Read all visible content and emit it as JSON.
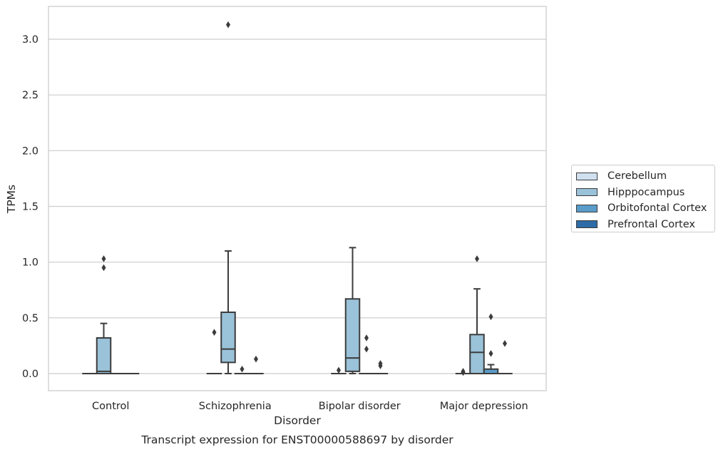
{
  "chart_data": {
    "type": "box",
    "title": "Transcript expression for ENST00000588697 by disorder",
    "xlabel": "Disorder",
    "ylabel": "TPMs",
    "ylim": [
      -0.15,
      3.28
    ],
    "yticks": [
      0.0,
      0.5,
      1.0,
      1.5,
      2.0,
      2.5,
      3.0
    ],
    "ytick_labels": [
      "0.0",
      "0.5",
      "1.0",
      "1.5",
      "2.0",
      "2.5",
      "3.0"
    ],
    "grid": "horizontal",
    "legend_position": "right",
    "categories": [
      "Control",
      "Schizophrenia",
      "Bipolar disorder",
      "Major depression"
    ],
    "series": [
      {
        "name": "Cerebellum",
        "color": "#d0e0ef",
        "boxes": [
          {
            "q1": 0,
            "median": 0,
            "q3": 0,
            "whisker_low": 0,
            "whisker_high": 0,
            "outliers": []
          },
          {
            "q1": 0,
            "median": 0,
            "q3": 0,
            "whisker_low": 0,
            "whisker_high": 0,
            "outliers": [
              0.37
            ]
          },
          {
            "q1": 0,
            "median": 0,
            "q3": 0,
            "whisker_low": 0,
            "whisker_high": 0,
            "outliers": [
              0.03
            ]
          },
          {
            "q1": 0,
            "median": 0,
            "q3": 0,
            "whisker_low": 0,
            "whisker_high": 0,
            "outliers": [
              0.01,
              0.02
            ]
          }
        ]
      },
      {
        "name": "Hipppocampus",
        "color": "#9ac2d9",
        "boxes": [
          {
            "q1": 0,
            "median": 0.02,
            "q3": 0.32,
            "whisker_low": 0,
            "whisker_high": 0.45,
            "outliers": [
              0.95,
              1.03
            ]
          },
          {
            "q1": 0.1,
            "median": 0.22,
            "q3": 0.55,
            "whisker_low": 0,
            "whisker_high": 1.1,
            "outliers": [
              3.13
            ]
          },
          {
            "q1": 0.02,
            "median": 0.14,
            "q3": 0.67,
            "whisker_low": 0,
            "whisker_high": 1.13,
            "outliers": []
          },
          {
            "q1": 0,
            "median": 0.19,
            "q3": 0.35,
            "whisker_low": 0,
            "whisker_high": 0.76,
            "outliers": [
              1.03
            ]
          }
        ]
      },
      {
        "name": "Orbitofontal Cortex",
        "color": "#5a9cc9",
        "boxes": [
          {
            "q1": 0,
            "median": 0,
            "q3": 0,
            "whisker_low": 0,
            "whisker_high": 0,
            "outliers": []
          },
          {
            "q1": 0,
            "median": 0,
            "q3": 0,
            "whisker_low": 0,
            "whisker_high": 0,
            "outliers": [
              0.04
            ]
          },
          {
            "q1": 0,
            "median": 0,
            "q3": 0,
            "whisker_low": 0,
            "whisker_high": 0,
            "outliers": [
              0.22,
              0.32
            ]
          },
          {
            "q1": 0,
            "median": 0,
            "q3": 0.04,
            "whisker_low": 0,
            "whisker_high": 0.08,
            "outliers": [
              0.18,
              0.51
            ]
          }
        ]
      },
      {
        "name": "Prefrontal Cortex",
        "color": "#2d6ca7",
        "boxes": [
          {
            "q1": 0,
            "median": 0,
            "q3": 0,
            "whisker_low": 0,
            "whisker_high": 0,
            "outliers": []
          },
          {
            "q1": 0,
            "median": 0,
            "q3": 0,
            "whisker_low": 0,
            "whisker_high": 0,
            "outliers": [
              0.13
            ]
          },
          {
            "q1": 0,
            "median": 0,
            "q3": 0,
            "whisker_low": 0,
            "whisker_high": 0,
            "outliers": [
              0.07,
              0.09
            ]
          },
          {
            "q1": 0,
            "median": 0,
            "q3": 0,
            "whisker_low": 0,
            "whisker_high": 0,
            "outliers": [
              0.27
            ]
          }
        ]
      }
    ]
  }
}
